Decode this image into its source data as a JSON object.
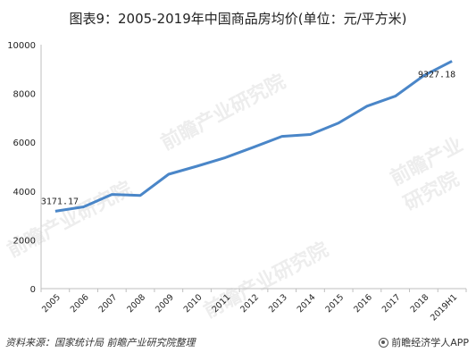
{
  "title": "图表9：2005-2019年中国商品房均价(单位：元/平方米)",
  "source": "资料来源：国家统计局 前瞻产业研究院整理",
  "brand": "前瞻经济学人APP",
  "watermark": "前瞻产业研究院",
  "colors": {
    "line": "#4a86c8"
  },
  "chart_data": {
    "type": "line",
    "title": "图表9：2005-2019年中国商品房均价(单位：元/平方米)",
    "categories": [
      "2005",
      "2006",
      "2007",
      "2008",
      "2009",
      "2010",
      "2011",
      "2012",
      "2013",
      "2014",
      "2015",
      "2016",
      "2017",
      "2018",
      "2019H1"
    ],
    "values": [
      3171.17,
      3350,
      3860,
      3820,
      4690,
      5020,
      5370,
      5800,
      6240,
      6320,
      6790,
      7480,
      7890,
      8730,
      9327.18
    ],
    "ylim": [
      0,
      10000
    ],
    "yticks": [
      0,
      2000,
      4000,
      6000,
      8000,
      10000
    ],
    "data_labels": [
      {
        "index": 0,
        "text": "3171.17"
      },
      {
        "index": 14,
        "text": "9327.18"
      }
    ],
    "grid": false,
    "legend": "none"
  }
}
